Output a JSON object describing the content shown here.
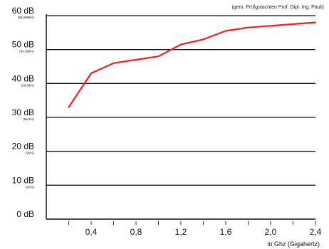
{
  "chart_data": {
    "type": "line",
    "source_note": "(gem. Prüfgutachten Prof. Dipl. Ing. Pauli)",
    "xlabel": "in Ghz (Gigahertz)",
    "x_ticks": [
      "0,4",
      "0,8",
      "1,2",
      "1,6",
      "2,0",
      "2,4"
    ],
    "x_tick_values": [
      0.4,
      0.8,
      1.2,
      1.6,
      2.0,
      2.4
    ],
    "xlim": [
      0.0,
      2.4
    ],
    "y_ticks": [
      {
        "value": 0,
        "label": "0 dB",
        "sub": ""
      },
      {
        "value": 10,
        "label": "10 dB",
        "sub": "(90%)"
      },
      {
        "value": 20,
        "label": "20 dB",
        "sub": "(99%)"
      },
      {
        "value": 30,
        "label": "30 dB",
        "sub": "(99,9%)"
      },
      {
        "value": 40,
        "label": "40 dB",
        "sub": "(99,99%)"
      },
      {
        "value": 50,
        "label": "50 dB",
        "sub": "(99,999%)"
      },
      {
        "value": 60,
        "label": "60 dB",
        "sub": "(99,9999%)"
      }
    ],
    "ylim": [
      0,
      60
    ],
    "grid": true,
    "series": [
      {
        "color": "#ff1a1a",
        "x": [
          0.2,
          0.4,
          0.6,
          0.8,
          1.0,
          1.2,
          1.4,
          1.6,
          1.8,
          2.0,
          2.2,
          2.4
        ],
        "y": [
          33.0,
          43.0,
          46.0,
          47.0,
          48.0,
          51.5,
          53.0,
          55.5,
          56.5,
          57.0,
          57.5,
          58.0
        ]
      }
    ]
  }
}
